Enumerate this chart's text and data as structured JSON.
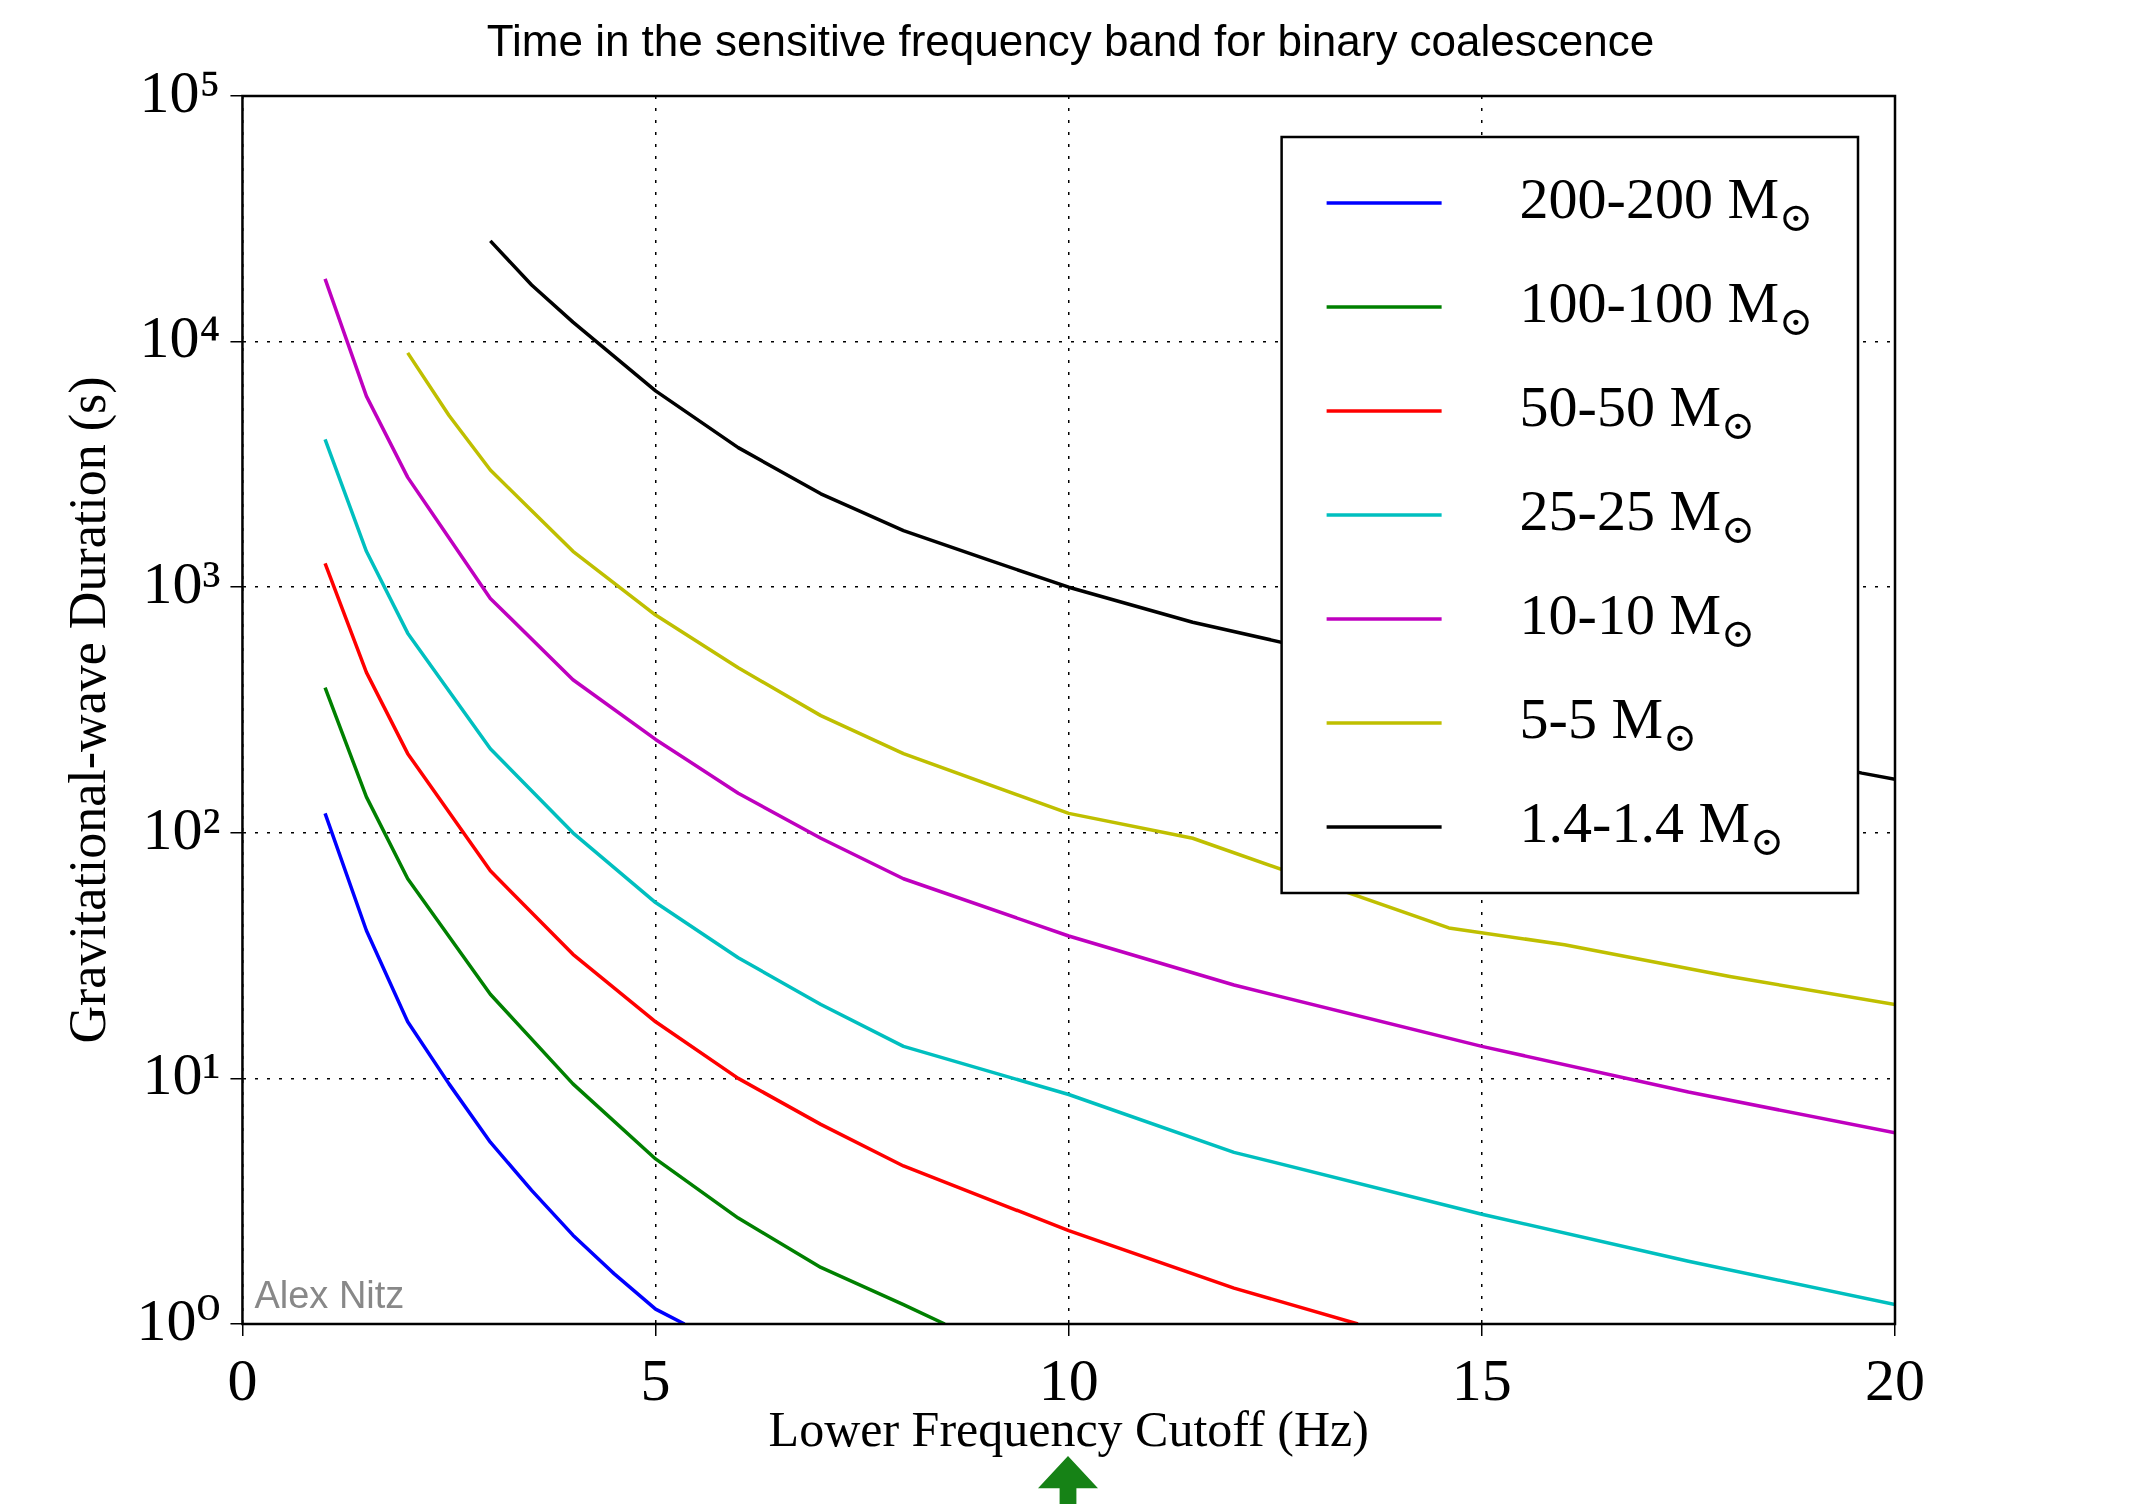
{
  "chart_data": {
    "type": "line",
    "title": "Time in the sensitive frequency band for binary coalescence",
    "xlabel": "Lower Frequency Cutoff (Hz)",
    "ylabel": "Gravitational-wave Duration (s)",
    "log": "y",
    "grid": true,
    "legend": "top right",
    "marker": "none",
    "line_style": "solid",
    "xlim": [
      0,
      20
    ],
    "xticks": [
      0,
      5,
      10,
      15,
      20
    ],
    "ylim": [
      1,
      100000
    ],
    "yticks": [
      {
        "value": 1,
        "label": "10⁰"
      },
      {
        "value": 10,
        "label": "10¹"
      },
      {
        "value": 100,
        "label": "10²"
      },
      {
        "value": 1000,
        "label": "10³"
      },
      {
        "value": 10000,
        "label": "10⁴"
      },
      {
        "value": 100000,
        "label": "10⁵"
      }
    ],
    "annotations": [
      "Alex Nitz"
    ],
    "series": [
      {
        "name": "200-200 M$_{⊙}$",
        "color": "#0000ff",
        "x": [
          1,
          1.5,
          2,
          2.5,
          3,
          3.5,
          4,
          4.5,
          5,
          5.35
        ],
        "values": [
          120,
          40,
          17,
          9.5,
          5.5,
          3.5,
          2.3,
          1.6,
          1.15,
          1
        ]
      },
      {
        "name": "100-100 M$_{⊙}$",
        "color": "#008000",
        "x": [
          1,
          1.5,
          2,
          3,
          4,
          5,
          6,
          7,
          8,
          8.5
        ],
        "values": [
          390,
          140,
          65,
          22,
          9.5,
          4.7,
          2.7,
          1.7,
          1.2,
          1
        ]
      },
      {
        "name": "50-50 M$_{⊙}$",
        "color": "#ff0000",
        "x": [
          1,
          1.5,
          2,
          3,
          4,
          5,
          6,
          7,
          8,
          10,
          12,
          13.5
        ],
        "values": [
          1250,
          450,
          210,
          70,
          32,
          17,
          10,
          6.5,
          4.4,
          2.4,
          1.4,
          1
        ]
      },
      {
        "name": "25-25 M$_{⊙}$",
        "color": "#00bfbf",
        "x": [
          1,
          1.5,
          2,
          3,
          4,
          5,
          6,
          7,
          8,
          10,
          12,
          15,
          17.5,
          20
        ],
        "values": [
          4000,
          1400,
          650,
          220,
          100,
          52,
          31,
          20,
          13.5,
          8.6,
          5,
          2.8,
          1.8,
          1.2
        ]
      },
      {
        "name": "10-10 M$_{⊙}$",
        "color": "#bf00bf",
        "x": [
          1,
          1.5,
          2,
          3,
          4,
          5,
          6,
          7,
          8,
          10,
          12,
          15,
          17.5,
          20
        ],
        "values": [
          18000,
          6000,
          2800,
          900,
          420,
          240,
          145,
          95,
          65,
          38,
          24,
          13.5,
          8.8,
          6
        ]
      },
      {
        "name": "5-5 M$_{⊙}$",
        "color": "#bfbf00",
        "x": [
          2,
          2.5,
          3,
          4,
          5,
          6,
          7,
          8,
          10,
          11.5,
          14.6,
          16,
          18,
          20
        ],
        "values": [
          9000,
          5000,
          3000,
          1400,
          770,
          470,
          300,
          210,
          120,
          95,
          41,
          35,
          26,
          20
        ]
      },
      {
        "name": "1.4-1.4 M$_{⊙}$",
        "color": "#000000",
        "x": [
          3,
          3.5,
          4,
          5,
          6,
          7,
          8,
          9,
          10,
          11.5,
          19.6,
          20
        ],
        "values": [
          25700,
          17000,
          12000,
          6300,
          3700,
          2400,
          1700,
          1300,
          1000,
          720,
          175,
          165
        ]
      }
    ]
  }
}
